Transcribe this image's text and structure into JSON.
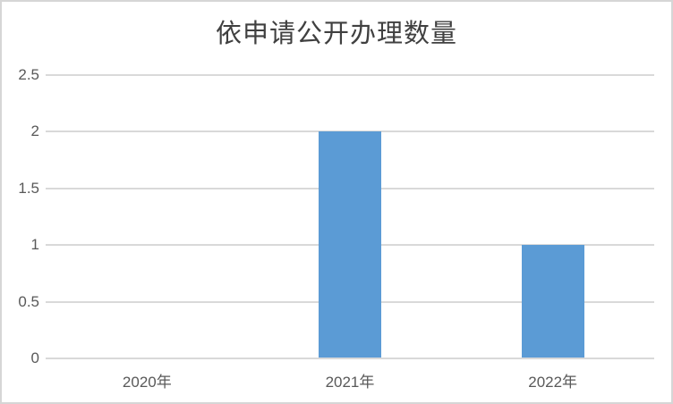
{
  "chart_data": {
    "type": "bar",
    "title": "依申请公开办理数量",
    "categories": [
      "2020年",
      "2021年",
      "2022年"
    ],
    "values": [
      0,
      2,
      1
    ],
    "xlabel": "",
    "ylabel": "",
    "ylim": [
      0,
      2.5
    ],
    "yticks": [
      0,
      0.5,
      1,
      1.5,
      2,
      2.5
    ],
    "grid": "on",
    "legend": "none",
    "colors": {
      "bar": "#5b9bd5",
      "gridline": "#d9d9d9",
      "axis_line": "#d9d9d9",
      "tick_label": "#595959",
      "title": "#404040",
      "background": "#ffffff",
      "border": "#d6d6d6"
    }
  }
}
